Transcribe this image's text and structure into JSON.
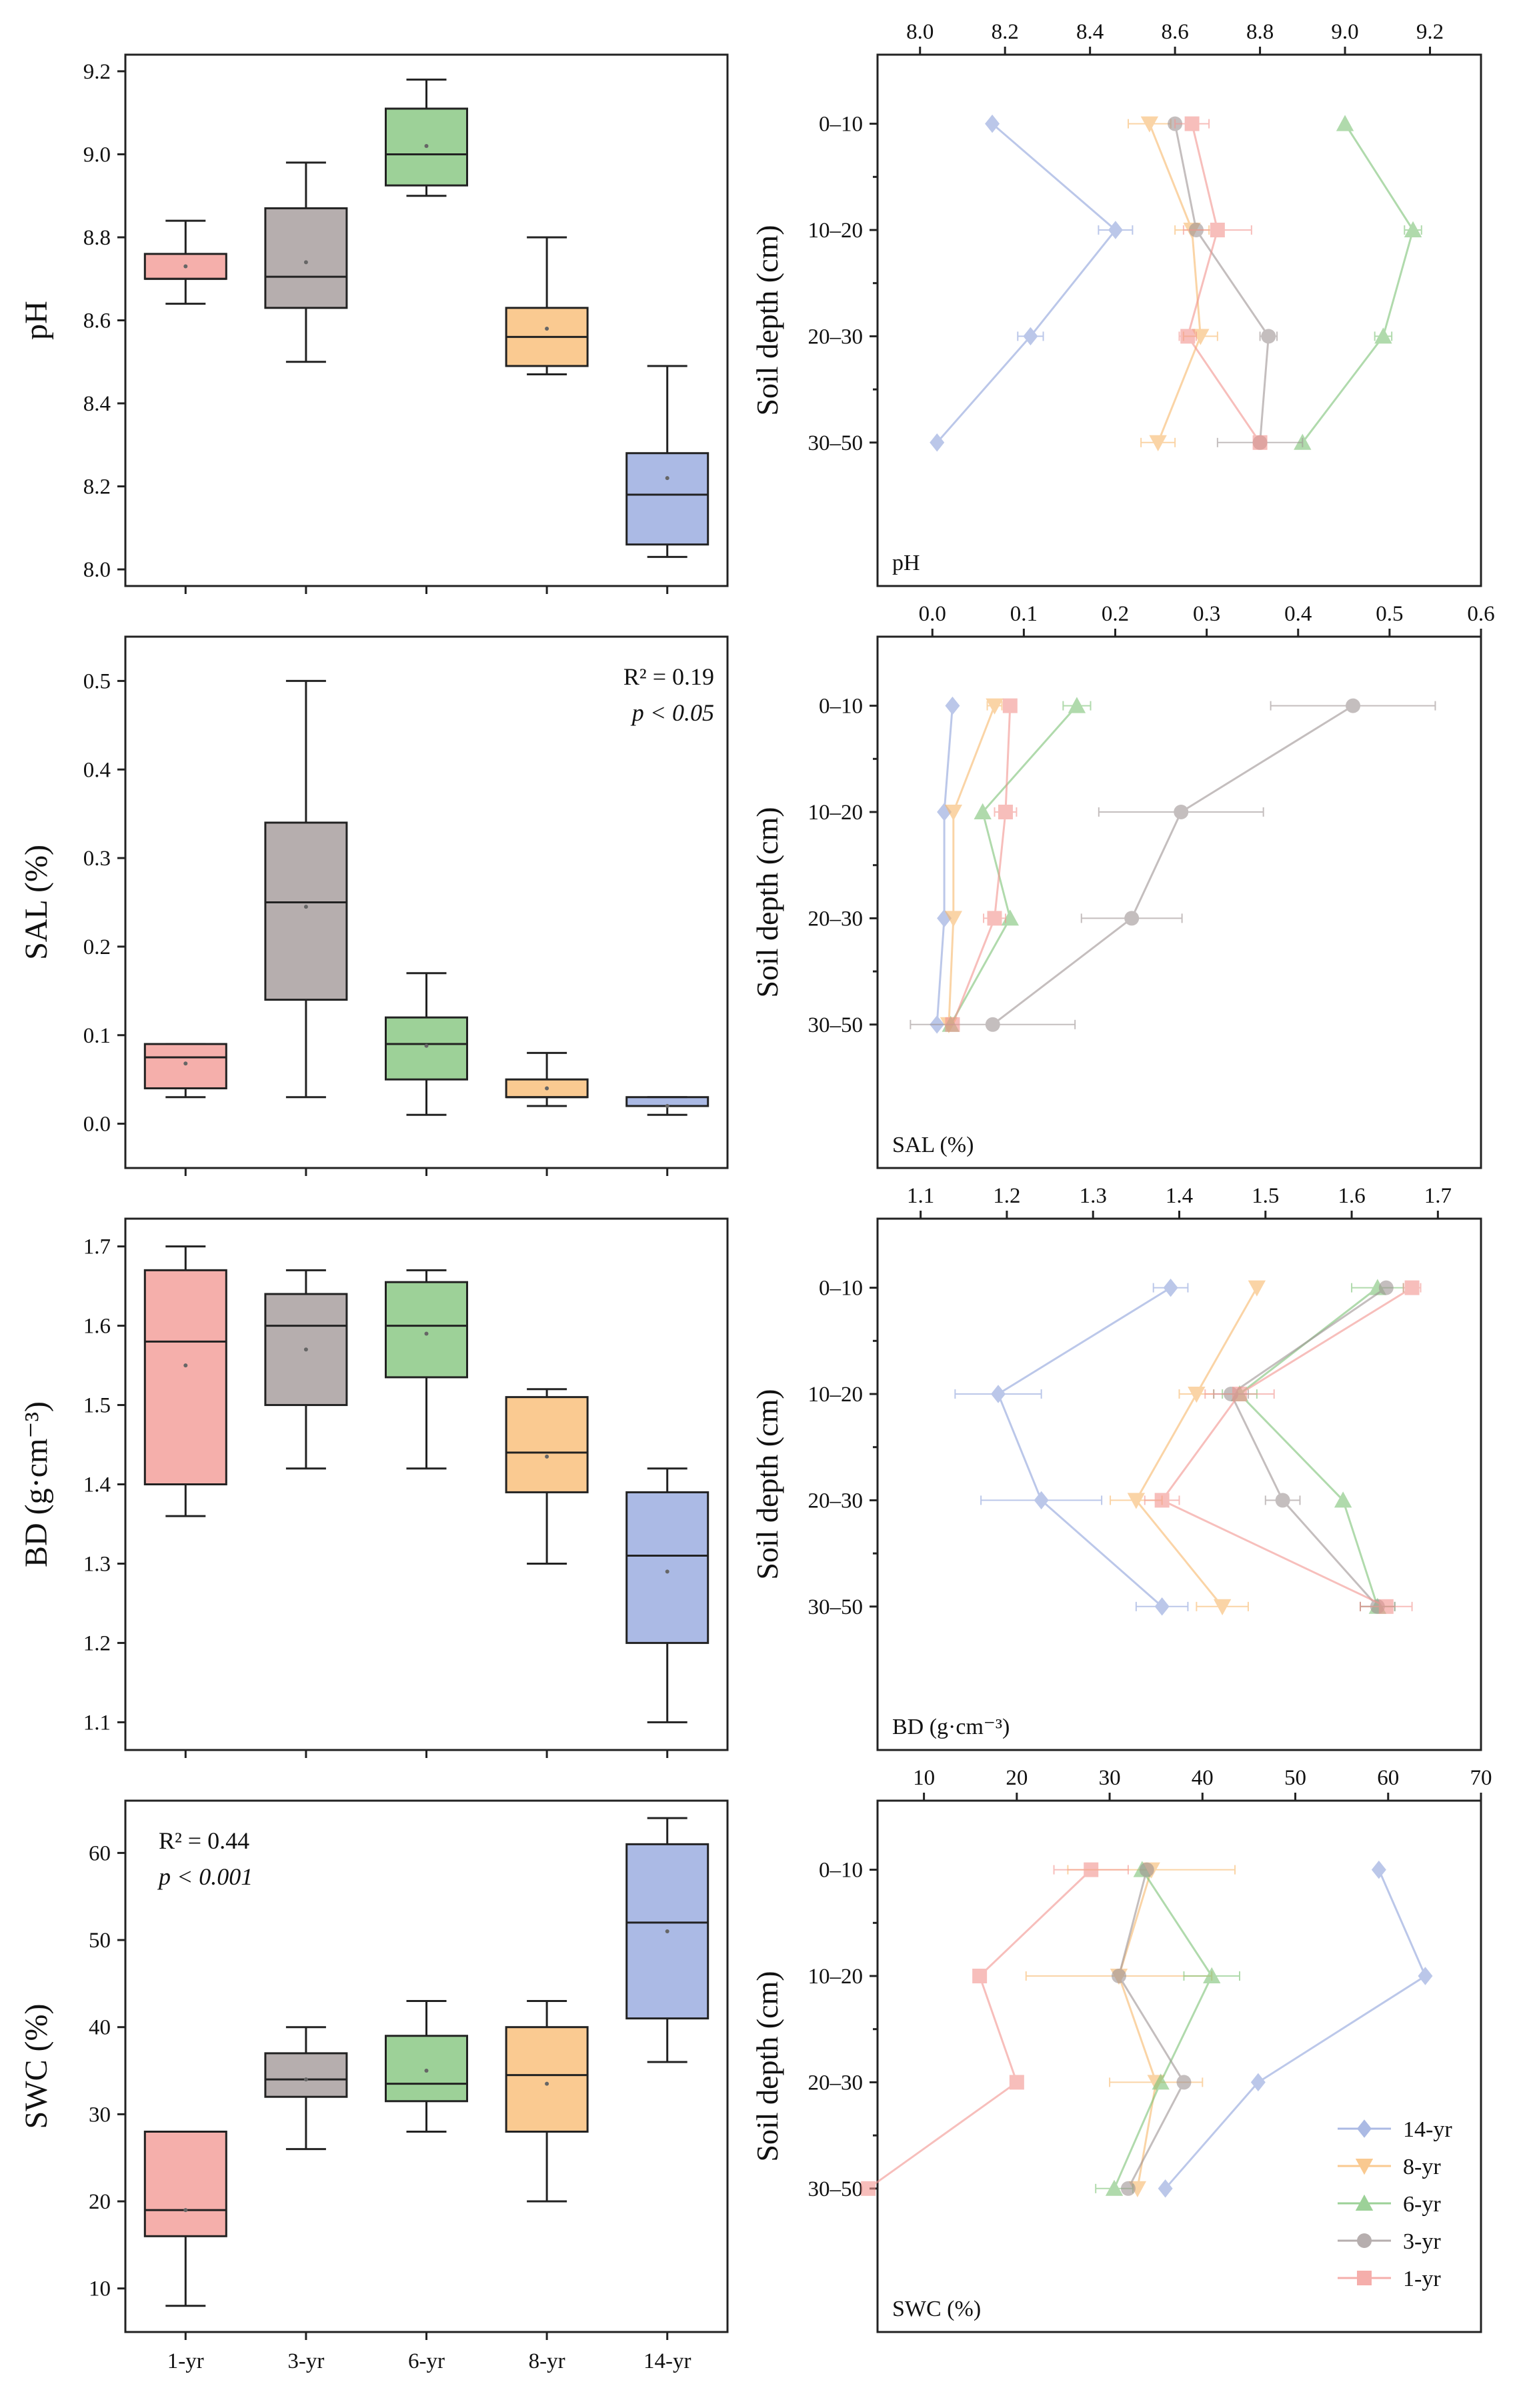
{
  "colors": {
    "14-yr": "#8fa3dc",
    "8-yr": "#f8b86c",
    "6-yr": "#7cc276",
    "3-yr": "#9e9393",
    "1-yr": "#f2948f"
  },
  "legend": {
    "items": [
      "14-yr",
      "8-yr",
      "6-yr",
      "3-yr",
      "1-yr"
    ],
    "position": "bottom-right"
  },
  "box_categories": [
    "1-yr",
    "3-yr",
    "6-yr",
    "8-yr",
    "14-yr"
  ],
  "depth_categories": [
    "0–10",
    "10–20",
    "20–30",
    "30–50"
  ],
  "depth_axis_label": "Soil depth (cm)",
  "chart_data": [
    {
      "id": "pH-box",
      "type": "box",
      "ylabel": "pH",
      "ylim": [
        7.96,
        9.24
      ],
      "yticks": [
        8.0,
        8.2,
        8.4,
        8.6,
        8.8,
        9.0,
        9.2
      ],
      "annotation": null,
      "boxes": [
        {
          "category": "1-yr",
          "min": 8.64,
          "q1": 8.7,
          "median": 8.7,
          "q3": 8.76,
          "max": 8.84,
          "mean": 8.73
        },
        {
          "category": "3-yr",
          "min": 8.5,
          "q1": 8.63,
          "median": 8.705,
          "q3": 8.87,
          "max": 8.98,
          "mean": 8.74
        },
        {
          "category": "6-yr",
          "min": 8.9,
          "q1": 8.925,
          "median": 9.0,
          "q3": 9.11,
          "max": 9.18,
          "mean": 9.02
        },
        {
          "category": "8-yr",
          "min": 8.47,
          "q1": 8.49,
          "median": 8.56,
          "q3": 8.63,
          "max": 8.8,
          "mean": 8.58
        },
        {
          "category": "14-yr",
          "min": 8.03,
          "q1": 8.06,
          "median": 8.18,
          "q3": 8.28,
          "max": 8.49,
          "mean": 8.22
        }
      ]
    },
    {
      "id": "pH-depth",
      "type": "line",
      "corner_label": "pH",
      "xlim": [
        7.9,
        9.32
      ],
      "xticks": [
        8.0,
        8.2,
        8.4,
        8.6,
        8.8,
        9.0,
        9.2
      ],
      "series": [
        {
          "name": "14-yr",
          "values": [
            8.17,
            8.46,
            8.26,
            8.04
          ],
          "err": [
            0,
            0.04,
            0.03,
            0
          ]
        },
        {
          "name": "8-yr",
          "values": [
            8.54,
            8.64,
            8.66,
            8.56
          ],
          "err": [
            0.05,
            0.04,
            0.04,
            0.04
          ]
        },
        {
          "name": "6-yr",
          "values": [
            9.0,
            9.16,
            9.09,
            8.9
          ],
          "err": [
            0,
            0.02,
            0.02,
            0
          ]
        },
        {
          "name": "3-yr",
          "values": [
            8.6,
            8.65,
            8.82,
            8.8
          ],
          "err": [
            0,
            0,
            0.02,
            0.1
          ]
        },
        {
          "name": "1-yr",
          "values": [
            8.64,
            8.7,
            8.63,
            8.8
          ],
          "err": [
            0.04,
            0.08,
            0.02,
            0
          ]
        }
      ]
    },
    {
      "id": "SAL-box",
      "type": "box",
      "ylabel": "SAL (%)",
      "ylim": [
        -0.05,
        0.55
      ],
      "yticks": [
        0.0,
        0.1,
        0.2,
        0.3,
        0.4,
        0.5
      ],
      "annotation": {
        "r2": "R² = 0.19",
        "p": "p < 0.05",
        "position": "top-right"
      },
      "boxes": [
        {
          "category": "1-yr",
          "min": 0.03,
          "q1": 0.04,
          "median": 0.075,
          "q3": 0.09,
          "max": 0.09,
          "mean": 0.068
        },
        {
          "category": "3-yr",
          "min": 0.03,
          "q1": 0.14,
          "median": 0.25,
          "q3": 0.34,
          "max": 0.5,
          "mean": 0.245
        },
        {
          "category": "6-yr",
          "min": 0.01,
          "q1": 0.05,
          "median": 0.09,
          "q3": 0.12,
          "max": 0.17,
          "mean": 0.088
        },
        {
          "category": "8-yr",
          "min": 0.02,
          "q1": 0.03,
          "median": 0.03,
          "q3": 0.05,
          "max": 0.08,
          "mean": 0.04
        },
        {
          "category": "14-yr",
          "min": 0.01,
          "q1": 0.02,
          "median": 0.02,
          "q3": 0.03,
          "max": 0.03,
          "mean": 0.02
        }
      ]
    },
    {
      "id": "SAL-depth",
      "type": "line",
      "corner_label": "SAL (%)",
      "xlim": [
        -0.06,
        0.6
      ],
      "xticks": [
        0.0,
        0.1,
        0.2,
        0.3,
        0.4,
        0.5,
        0.6
      ],
      "series": [
        {
          "name": "14-yr",
          "values": [
            0.022,
            0.013,
            0.013,
            0.005
          ],
          "err": [
            0,
            0,
            0,
            0
          ]
        },
        {
          "name": "8-yr",
          "values": [
            0.068,
            0.023,
            0.023,
            0.018
          ],
          "err": [
            0.008,
            0,
            0,
            0
          ]
        },
        {
          "name": "6-yr",
          "values": [
            0.158,
            0.055,
            0.085,
            0.02
          ],
          "err": [
            0.015,
            0,
            0,
            0
          ]
        },
        {
          "name": "3-yr",
          "values": [
            0.46,
            0.272,
            0.218,
            0.066
          ],
          "err": [
            0.09,
            0.09,
            0.055,
            0.09
          ]
        },
        {
          "name": "1-yr",
          "values": [
            0.085,
            0.08,
            0.068,
            0.022
          ],
          "err": [
            0,
            0.012,
            0.012,
            0
          ]
        }
      ]
    },
    {
      "id": "BD-box",
      "type": "box",
      "ylabel": "BD (g·cm⁻³)",
      "ylim": [
        1.065,
        1.735
      ],
      "yticks": [
        1.1,
        1.2,
        1.3,
        1.4,
        1.5,
        1.6,
        1.7
      ],
      "annotation": null,
      "boxes": [
        {
          "category": "1-yr",
          "min": 1.36,
          "q1": 1.4,
          "median": 1.58,
          "q3": 1.67,
          "max": 1.7,
          "mean": 1.55
        },
        {
          "category": "3-yr",
          "min": 1.42,
          "q1": 1.5,
          "median": 1.6,
          "q3": 1.64,
          "max": 1.67,
          "mean": 1.57
        },
        {
          "category": "6-yr",
          "min": 1.42,
          "q1": 1.535,
          "median": 1.6,
          "q3": 1.655,
          "max": 1.67,
          "mean": 1.59
        },
        {
          "category": "8-yr",
          "min": 1.3,
          "q1": 1.39,
          "median": 1.44,
          "q3": 1.51,
          "max": 1.52,
          "mean": 1.435
        },
        {
          "category": "14-yr",
          "min": 1.1,
          "q1": 1.2,
          "median": 1.31,
          "q3": 1.39,
          "max": 1.42,
          "mean": 1.29
        }
      ]
    },
    {
      "id": "BD-depth",
      "type": "line",
      "corner_label": "BD (g·cm⁻³)",
      "xlim": [
        1.05,
        1.75
      ],
      "xticks": [
        1.1,
        1.2,
        1.3,
        1.4,
        1.5,
        1.6,
        1.7
      ],
      "series": [
        {
          "name": "14-yr",
          "values": [
            1.39,
            1.19,
            1.24,
            1.38
          ],
          "err": [
            0.02,
            0.05,
            0.07,
            0.03
          ]
        },
        {
          "name": "8-yr",
          "values": [
            1.49,
            1.42,
            1.35,
            1.45
          ],
          "err": [
            0,
            0.02,
            0.03,
            0.03
          ]
        },
        {
          "name": "6-yr",
          "values": [
            1.63,
            1.47,
            1.59,
            1.63
          ],
          "err": [
            0.03,
            0.02,
            0,
            0.02
          ]
        },
        {
          "name": "3-yr",
          "values": [
            1.64,
            1.46,
            1.52,
            1.63
          ],
          "err": [
            0,
            0.02,
            0.02,
            0.02
          ]
        },
        {
          "name": "1-yr",
          "values": [
            1.67,
            1.47,
            1.38,
            1.64
          ],
          "err": [
            0.01,
            0.04,
            0.02,
            0.03
          ]
        }
      ]
    },
    {
      "id": "SWC-box",
      "type": "box",
      "ylabel": "SWC (%)",
      "ylim": [
        5,
        66
      ],
      "yticks": [
        10,
        20,
        30,
        40,
        50,
        60
      ],
      "annotation": {
        "r2": "R² = 0.44",
        "p": "p < 0.001",
        "position": "top-left"
      },
      "boxes": [
        {
          "category": "1-yr",
          "min": 8,
          "q1": 16,
          "median": 19,
          "q3": 28,
          "max": 28,
          "mean": 19
        },
        {
          "category": "3-yr",
          "min": 26,
          "q1": 32,
          "median": 34,
          "q3": 37,
          "max": 40,
          "mean": 34
        },
        {
          "category": "6-yr",
          "min": 28,
          "q1": 31.5,
          "median": 33.5,
          "q3": 39,
          "max": 43,
          "mean": 35
        },
        {
          "category": "8-yr",
          "min": 20,
          "q1": 28,
          "median": 34.5,
          "q3": 40,
          "max": 43,
          "mean": 33.5
        },
        {
          "category": "14-yr",
          "min": 36,
          "q1": 41,
          "median": 52,
          "q3": 61,
          "max": 64,
          "mean": 51
        }
      ]
    },
    {
      "id": "SWC-depth",
      "type": "line",
      "corner_label": "SWC (%)",
      "xlim": [
        5,
        70
      ],
      "xticks": [
        10,
        20,
        30,
        40,
        50,
        60,
        70
      ],
      "series": [
        {
          "name": "14-yr",
          "values": [
            59,
            64,
            46,
            36
          ],
          "err": [
            0,
            0,
            0,
            0
          ]
        },
        {
          "name": "8-yr",
          "values": [
            34.5,
            31,
            35,
            33
          ],
          "err": [
            9,
            10,
            5,
            0
          ]
        },
        {
          "name": "6-yr",
          "values": [
            33.5,
            41,
            35.5,
            30.5
          ],
          "err": [
            0,
            3,
            0,
            2
          ]
        },
        {
          "name": "3-yr",
          "values": [
            34,
            31,
            38,
            32
          ],
          "err": [
            0,
            0,
            0,
            0
          ]
        },
        {
          "name": "1-yr",
          "values": [
            28,
            16,
            20,
            4
          ],
          "err": [
            4,
            0,
            0,
            0
          ]
        }
      ]
    }
  ]
}
